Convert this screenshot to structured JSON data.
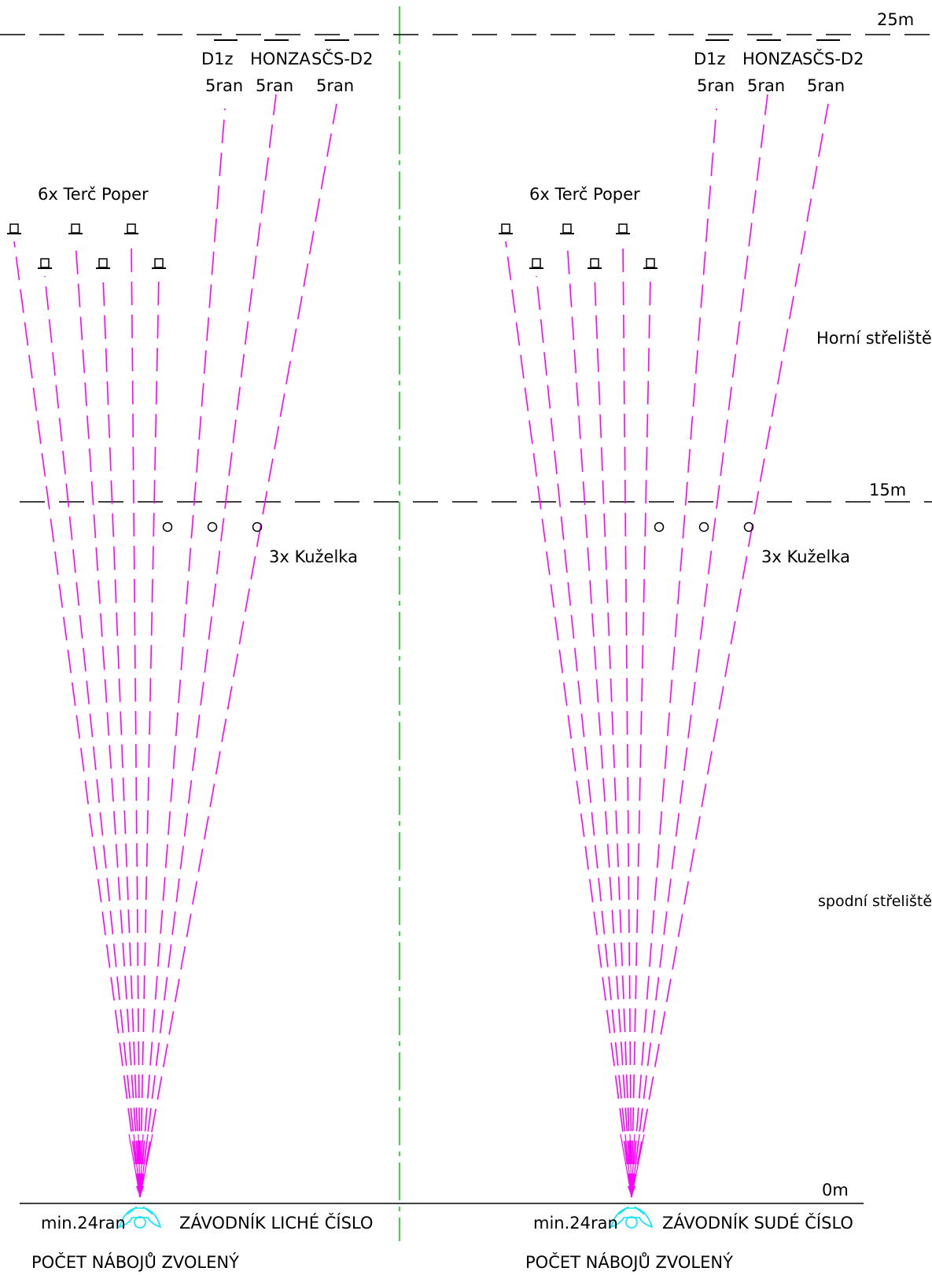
{
  "distances": {
    "far": "25m",
    "mid": "15m",
    "start": "0m"
  },
  "zones": {
    "upper": "Horní střeliště",
    "lower": "spodní střeliště"
  },
  "lanes": [
    {
      "id": "left",
      "weapons": [
        {
          "name": "D1z",
          "shots": "5ran"
        },
        {
          "name": "HONZA",
          "shots": "5ran"
        },
        {
          "name": "SČS-D2",
          "shots": "5ran"
        }
      ],
      "poppers_label": "6x  Terč  Poper",
      "pins_label": "3x  Kuželka",
      "min_rounds": "min.24ran",
      "shooter_label": "ZÁVODNÍK  LICHÉ  ČÍSLO",
      "ammo_note": "POČET  NÁBOJŮ  ZVOLENÝ"
    },
    {
      "id": "right",
      "weapons": [
        {
          "name": "D1z",
          "shots": "5ran"
        },
        {
          "name": "HONZA",
          "shots": "5ran"
        },
        {
          "name": "SČS-D2",
          "shots": "5ran"
        }
      ],
      "poppers_label": "6x  Terč  Poper",
      "pins_label": "3x  Kuželka",
      "min_rounds": "min.24ran",
      "shooter_label": "ZÁVODNÍK  SUDÉ  ČÍSLO",
      "ammo_note": "POČET  NÁBOJŮ  ZVOLENÝ"
    }
  ],
  "colors": {
    "fire_lines": "#ff00ff",
    "center_line": "#00cc00",
    "shooter_icon": "#00e5ff",
    "ink": "#000000"
  },
  "icons": {
    "popper": "popper-target-icon",
    "pin": "bowling-pin-icon",
    "shooter": "shooter-icon"
  }
}
